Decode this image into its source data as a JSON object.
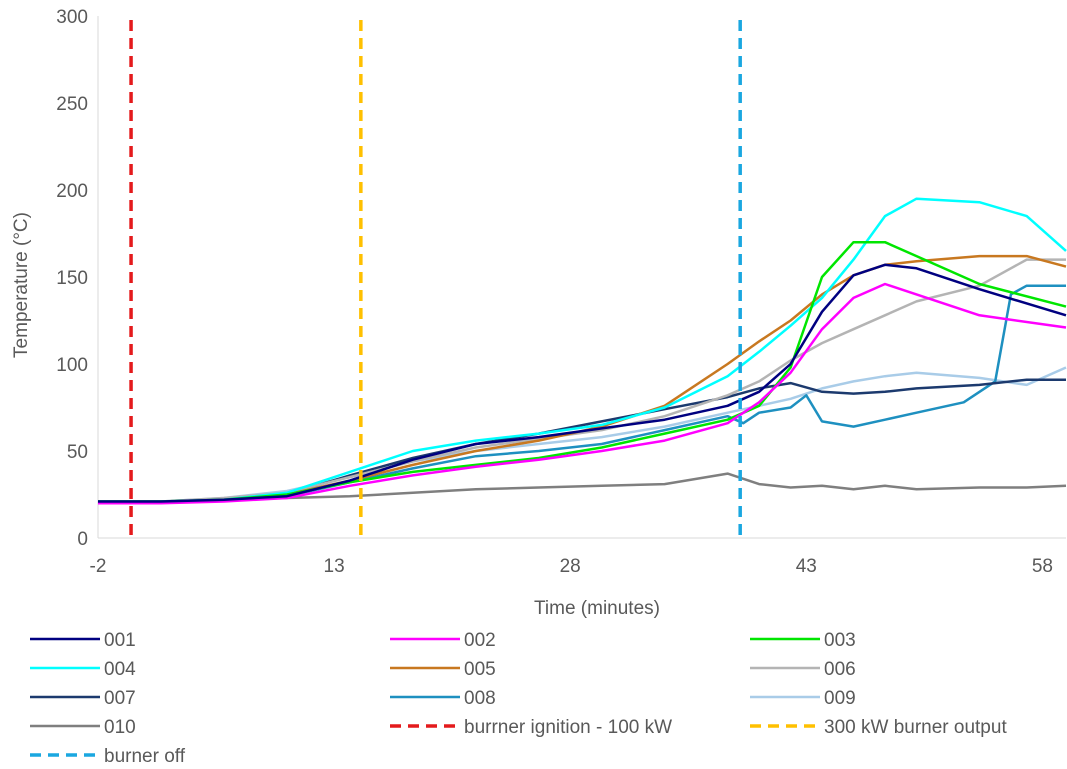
{
  "chart_data": {
    "type": "line",
    "title": "",
    "xlabel": "Time (minutes)",
    "ylabel": "Temperature (°C)",
    "xlim": [
      -2,
      59.5
    ],
    "ylim": [
      0,
      300
    ],
    "x_ticks": [
      -2,
      13,
      28,
      43,
      58
    ],
    "y_ticks": [
      0,
      50,
      100,
      150,
      200,
      250,
      300
    ],
    "x_tick_labels": [
      "-2",
      "13",
      "28",
      "43",
      "58"
    ],
    "y_tick_labels": [
      "0",
      "50",
      "100",
      "150",
      "200",
      "250",
      "300"
    ],
    "grid": false,
    "legend_position": "bottom",
    "series": [
      {
        "name": "001",
        "color": "#000080",
        "style": "solid",
        "x": [
          -2,
          2,
          6,
          10,
          14,
          18,
          22,
          26,
          30,
          34,
          38,
          40,
          42,
          44,
          46,
          48,
          50,
          54,
          59.5
        ],
        "y": [
          21,
          21,
          22,
          24,
          33,
          45,
          54,
          58,
          63,
          68,
          76,
          84,
          100,
          130,
          151,
          157,
          155,
          143,
          128
        ]
      },
      {
        "name": "002",
        "color": "#FF00FF",
        "style": "solid",
        "x": [
          -2,
          2,
          6,
          10,
          14,
          18,
          22,
          26,
          30,
          34,
          38,
          40,
          42,
          44,
          46,
          48,
          50,
          54,
          59.5
        ],
        "y": [
          20,
          20,
          21,
          23,
          30,
          36,
          41,
          45,
          50,
          56,
          66,
          78,
          95,
          120,
          138,
          146,
          140,
          128,
          121
        ]
      },
      {
        "name": "003",
        "color": "#00E600",
        "style": "solid",
        "x": [
          -2,
          2,
          6,
          10,
          14,
          18,
          22,
          26,
          30,
          34,
          38,
          40,
          42,
          44,
          46,
          48,
          50,
          54,
          59.5
        ],
        "y": [
          21,
          21,
          22,
          25,
          32,
          38,
          42,
          46,
          52,
          60,
          68,
          76,
          98,
          150,
          170,
          170,
          162,
          146,
          133
        ]
      },
      {
        "name": "004",
        "color": "#00FFFF",
        "style": "solid",
        "x": [
          -2,
          2,
          6,
          10,
          14,
          18,
          22,
          26,
          30,
          34,
          38,
          40,
          42,
          44,
          46,
          48,
          50,
          54,
          57,
          59.5
        ],
        "y": [
          21,
          21,
          22,
          26,
          38,
          50,
          56,
          60,
          65,
          75,
          93,
          107,
          122,
          138,
          160,
          185,
          195,
          193,
          185,
          165
        ]
      },
      {
        "name": "005",
        "color": "#C87820",
        "style": "solid",
        "x": [
          -2,
          2,
          6,
          10,
          14,
          18,
          22,
          26,
          30,
          34,
          38,
          40,
          42,
          44,
          46,
          48,
          50,
          54,
          57,
          59.5
        ],
        "y": [
          21,
          21,
          22,
          25,
          33,
          42,
          50,
          56,
          64,
          76,
          100,
          113,
          125,
          140,
          151,
          157,
          159,
          162,
          162,
          156
        ]
      },
      {
        "name": "006",
        "color": "#B4B4B4",
        "style": "solid",
        "x": [
          -2,
          2,
          6,
          10,
          14,
          18,
          22,
          26,
          30,
          34,
          38,
          40,
          42,
          44,
          46,
          48,
          50,
          54,
          57,
          59.5
        ],
        "y": [
          21,
          21,
          23,
          26,
          35,
          44,
          52,
          57,
          62,
          70,
          82,
          90,
          102,
          112,
          120,
          128,
          136,
          145,
          160,
          160
        ]
      },
      {
        "name": "007",
        "color": "#1C3A6E",
        "style": "solid",
        "x": [
          -2,
          2,
          6,
          10,
          14,
          18,
          22,
          26,
          30,
          34,
          38,
          40,
          42,
          44,
          46,
          48,
          50,
          54,
          57,
          59.5
        ],
        "y": [
          21,
          21,
          22,
          25,
          36,
          46,
          54,
          60,
          67,
          74,
          81,
          86,
          89,
          84,
          83,
          84,
          86,
          88,
          91,
          91
        ]
      },
      {
        "name": "008",
        "color": "#1E90C0",
        "style": "solid",
        "x": [
          -2,
          2,
          6,
          10,
          14,
          18,
          22,
          26,
          30,
          34,
          38,
          39,
          40,
          42,
          43,
          44,
          46,
          48,
          50,
          53,
          55,
          56,
          57,
          59.5
        ],
        "y": [
          21,
          21,
          22,
          24,
          32,
          40,
          47,
          50,
          54,
          62,
          70,
          66,
          72,
          75,
          82,
          67,
          64,
          68,
          72,
          78,
          90,
          140,
          145,
          145
        ]
      },
      {
        "name": "009",
        "color": "#A9CCE8",
        "style": "solid",
        "x": [
          -2,
          2,
          6,
          10,
          14,
          18,
          22,
          26,
          30,
          34,
          38,
          40,
          42,
          44,
          46,
          48,
          50,
          54,
          57,
          59.5
        ],
        "y": [
          21,
          21,
          23,
          27,
          35,
          44,
          50,
          54,
          58,
          64,
          72,
          76,
          80,
          86,
          90,
          93,
          95,
          92,
          88,
          98
        ]
      },
      {
        "name": "010",
        "color": "#7F7F7F",
        "style": "solid",
        "x": [
          -2,
          2,
          6,
          10,
          14,
          18,
          22,
          26,
          30,
          34,
          38,
          40,
          42,
          44,
          46,
          48,
          50,
          54,
          57,
          59.5
        ],
        "y": [
          20,
          21,
          22,
          23,
          24,
          26,
          28,
          29,
          30,
          31,
          37,
          31,
          29,
          30,
          28,
          30,
          28,
          29,
          29,
          30
        ]
      }
    ],
    "vertical_lines": [
      {
        "name": "burrner ignition - 100 kW",
        "x": 0.1,
        "color": "#E41A1C"
      },
      {
        "name": "300 kW burner output",
        "x": 14.7,
        "color": "#FFC000"
      },
      {
        "name": "burner off",
        "x": 38.8,
        "color": "#1AA7E0"
      }
    ]
  }
}
